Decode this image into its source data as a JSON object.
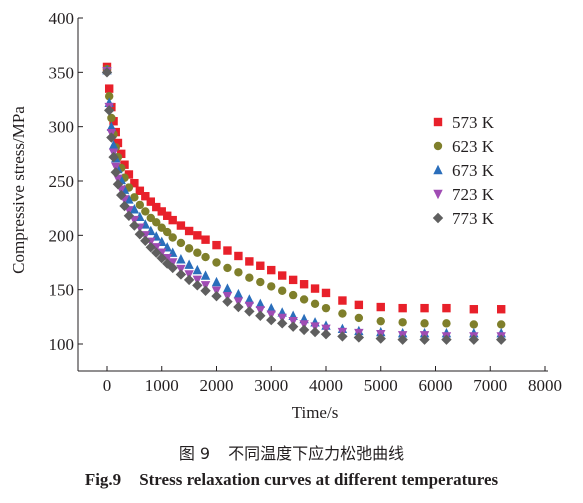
{
  "chart_data": {
    "type": "scatter",
    "title": "",
    "xlabel": "Time/s",
    "ylabel": "Compressive stress/MPa",
    "xlim": [
      0,
      8000
    ],
    "ylim": [
      100,
      400
    ],
    "x_ticks": [
      "0",
      "1000",
      "2000",
      "3000",
      "4000",
      "5000",
      "6000",
      "7000",
      "8000"
    ],
    "y_ticks": [
      "100",
      "150",
      "200",
      "250",
      "300",
      "350",
      "400"
    ],
    "grid": false,
    "legend_position": "right",
    "series": [
      {
        "name": "573 K",
        "marker": "square",
        "color": "#e8202a",
        "x": [
          0,
          40,
          80,
          120,
          160,
          200,
          260,
          320,
          400,
          500,
          600,
          700,
          800,
          900,
          1000,
          1100,
          1200,
          1350,
          1500,
          1650,
          1800,
          2000,
          2200,
          2400,
          2600,
          2800,
          3000,
          3200,
          3400,
          3600,
          3800,
          4000,
          4300,
          4600,
          5000,
          5400,
          5800,
          6200,
          6700,
          7200
        ],
        "y": [
          355,
          335,
          318,
          305,
          295,
          285,
          275,
          265,
          256,
          248,
          241,
          236,
          231,
          226,
          222,
          218,
          214,
          209,
          204,
          200,
          196,
          191,
          186,
          181,
          176,
          172,
          168,
          163,
          159,
          155,
          151,
          147,
          140,
          136,
          134,
          133,
          133,
          133,
          132,
          132
        ]
      },
      {
        "name": "623 K",
        "marker": "circle",
        "color": "#7f7f2b",
        "x": [
          0,
          40,
          80,
          120,
          160,
          200,
          260,
          320,
          400,
          500,
          600,
          700,
          800,
          900,
          1000,
          1100,
          1200,
          1350,
          1500,
          1650,
          1800,
          2000,
          2200,
          2400,
          2600,
          2800,
          3000,
          3200,
          3400,
          3600,
          3800,
          4000,
          4300,
          4600,
          5000,
          5400,
          5800,
          6200,
          6700,
          7200
        ],
        "y": [
          353,
          328,
          308,
          293,
          281,
          272,
          262,
          253,
          244,
          235,
          228,
          222,
          216,
          212,
          207,
          203,
          198,
          193,
          188,
          184,
          180,
          175,
          170,
          166,
          161,
          157,
          153,
          149,
          145,
          141,
          137,
          133,
          128,
          124,
          121,
          120,
          119,
          119,
          118,
          118
        ]
      },
      {
        "name": "673 K",
        "marker": "triangle",
        "color": "#2a6ebb",
        "x": [
          0,
          40,
          80,
          120,
          160,
          200,
          260,
          320,
          400,
          500,
          600,
          700,
          800,
          900,
          1000,
          1100,
          1200,
          1350,
          1500,
          1650,
          1800,
          2000,
          2200,
          2400,
          2600,
          2800,
          3000,
          3200,
          3400,
          3600,
          3800,
          4000,
          4300,
          4600,
          5000,
          5400,
          5800,
          6200,
          6700,
          7200
        ],
        "y": [
          352,
          322,
          300,
          283,
          271,
          261,
          251,
          242,
          233,
          224,
          217,
          210,
          204,
          199,
          194,
          189,
          184,
          178,
          173,
          168,
          163,
          157,
          151,
          146,
          141,
          137,
          133,
          129,
          126,
          123,
          120,
          117,
          114,
          112,
          111,
          110,
          110,
          110,
          110,
          110
        ]
      },
      {
        "name": "723 K",
        "marker": "triangle-down",
        "color": "#a04cb4",
        "x": [
          0,
          40,
          80,
          120,
          160,
          200,
          260,
          320,
          400,
          500,
          600,
          700,
          800,
          900,
          1000,
          1100,
          1200,
          1350,
          1500,
          1650,
          1800,
          2000,
          2200,
          2400,
          2600,
          2800,
          3000,
          3200,
          3400,
          3600,
          3800,
          4000,
          4300,
          4600,
          5000,
          5400,
          5800,
          6200,
          6700,
          7200
        ],
        "y": [
          351,
          318,
          294,
          276,
          263,
          252,
          242,
          233,
          223,
          214,
          207,
          200,
          194,
          189,
          184,
          179,
          175,
          169,
          164,
          159,
          154,
          149,
          144,
          139,
          135,
          131,
          127,
          124,
          121,
          118,
          116,
          114,
          111,
          110,
          109,
          108,
          108,
          107,
          107,
          107
        ]
      },
      {
        "name": "773 K",
        "marker": "diamond",
        "color": "#5f5f5f",
        "x": [
          0,
          40,
          80,
          120,
          160,
          200,
          260,
          320,
          400,
          500,
          600,
          700,
          800,
          900,
          1000,
          1100,
          1200,
          1350,
          1500,
          1650,
          1800,
          2000,
          2200,
          2400,
          2600,
          2800,
          3000,
          3200,
          3400,
          3600,
          3800,
          4000,
          4300,
          4600,
          5000,
          5400,
          5800,
          6200,
          6700,
          7200
        ],
        "y": [
          350,
          315,
          290,
          272,
          258,
          247,
          237,
          227,
          218,
          209,
          201,
          195,
          189,
          184,
          179,
          174,
          170,
          164,
          159,
          154,
          149,
          144,
          139,
          134,
          130,
          126,
          122,
          119,
          116,
          113,
          111,
          109,
          107,
          106,
          105,
          104,
          104,
          104,
          104,
          104
        ]
      }
    ]
  },
  "caption": {
    "cn_number": "图 9",
    "cn_text": "不同温度下应力松弛曲线",
    "en_number": "Fig.9",
    "en_text": "Stress relaxation curves at different temperatures"
  }
}
